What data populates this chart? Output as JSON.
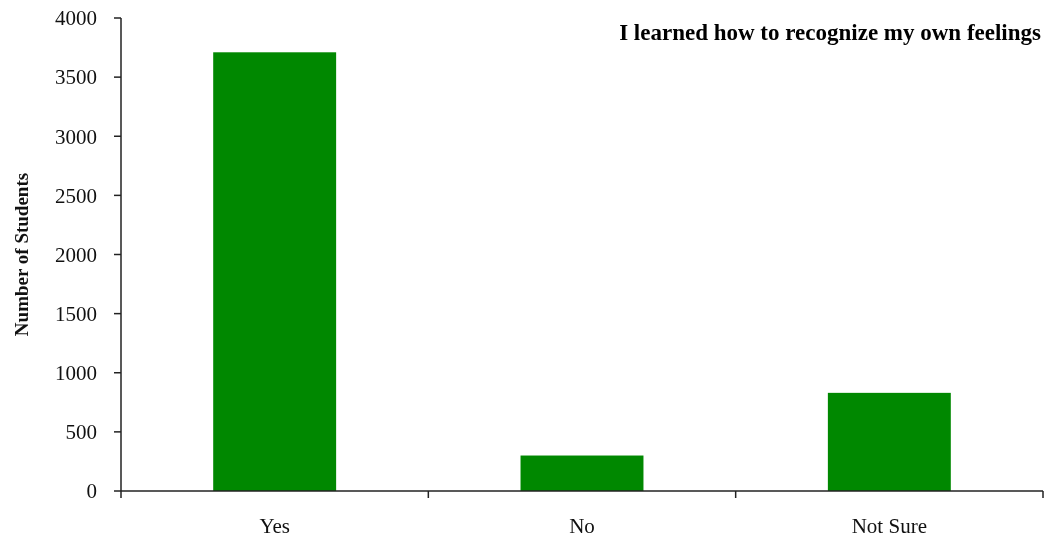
{
  "chart_data": {
    "type": "bar",
    "title": "I learned how to recognize my own feelings",
    "ylabel": "Number of Students",
    "categories": [
      "Yes",
      "No",
      "Not Sure"
    ],
    "values": [
      3710,
      300,
      830
    ],
    "color": "#008800",
    "ylim": [
      0,
      4000
    ],
    "yticks": [
      0,
      500,
      1000,
      1500,
      2000,
      2500,
      3000,
      3500,
      4000
    ],
    "grid": false
  }
}
